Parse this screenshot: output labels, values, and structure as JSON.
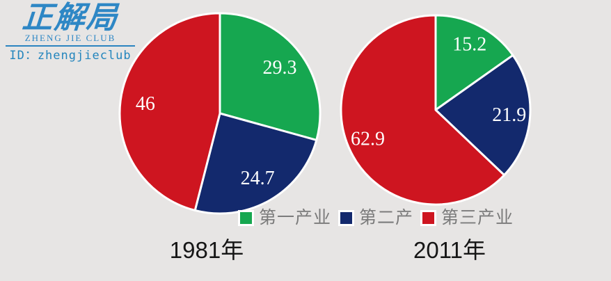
{
  "background_color": "#e7e5e4",
  "brand": {
    "logo_text": "正解局",
    "logo_subtext": "ZHENG JIE CLUB",
    "id_label": "ID：zhengjieclub",
    "color": "#2e87c5"
  },
  "legend": {
    "items": [
      {
        "label": "第一产业",
        "color": "#16a750"
      },
      {
        "label": "第二产",
        "color": "#13296d"
      },
      {
        "label": "第三产业",
        "color": "#ce1520"
      }
    ]
  },
  "chart_data": [
    {
      "type": "pie",
      "title": "1981年",
      "categories": [
        "第一产业",
        "第二产业",
        "第三产业"
      ],
      "values": [
        29.3,
        24.7,
        46
      ],
      "value_labels": [
        "29.3",
        "24.7",
        "46"
      ],
      "colors": [
        "#16a750",
        "#13296d",
        "#ce1520"
      ],
      "start_angle_deg": 0,
      "direction": "clockwise",
      "slice_border_color": "#ffffff",
      "label_color": "#ffffff",
      "legend_position": "bottom"
    },
    {
      "type": "pie",
      "title": "2011年",
      "categories": [
        "第一产业",
        "第二产业",
        "第三产业"
      ],
      "values": [
        15.2,
        21.9,
        62.9
      ],
      "value_labels": [
        "15.2",
        "21.9",
        "62.9"
      ],
      "colors": [
        "#16a750",
        "#13296d",
        "#ce1520"
      ],
      "start_angle_deg": 0,
      "direction": "clockwise",
      "slice_border_color": "#ffffff",
      "label_color": "#ffffff",
      "legend_position": "bottom"
    }
  ]
}
